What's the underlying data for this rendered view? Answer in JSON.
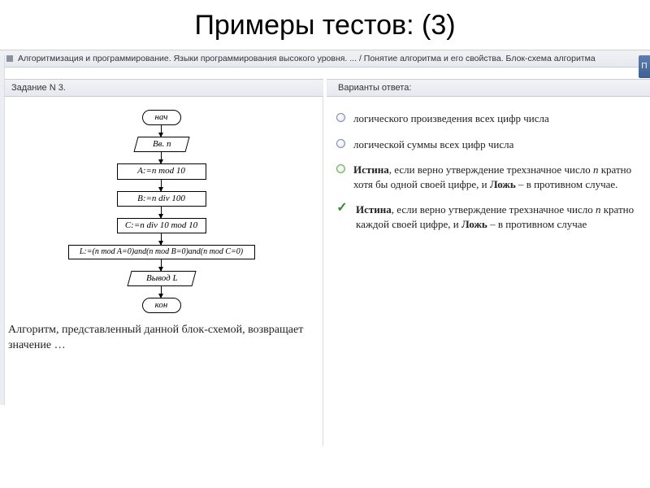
{
  "title": "Примеры тестов: (3)",
  "breadcrumb": "Алгоритмизация и программирование. Языки программирования высокого уровня. ... / Понятие алгоритма и его свойства. Блок-схема алгоритма",
  "right_tab": "П",
  "left_header": "Задание N 3.",
  "right_header": "Варианты ответа:",
  "flowchart": {
    "start": "нач",
    "input": "Вв. n",
    "p1": "A:=n mod 10",
    "p2": "B:=n div 100",
    "p3": "C:=n div 10 mod 10",
    "p4": "L:=(n mod A=0)and(n mod B=0)and(n mod C=0)",
    "output": "Вывод L",
    "end": "кон"
  },
  "caption": "Алгоритм, представленный данной блок-схемой, возвращает значение …",
  "options": [
    {
      "kind": "radio",
      "text": "логического произведения всех цифр числа"
    },
    {
      "kind": "radio",
      "text": "логической суммы всех цифр числа"
    },
    {
      "kind": "radio-hint",
      "html": "<b>Истина</b>, если верно утверждение трехзначное число <i>n</i> кратно хотя бы одной своей цифре, и <b>Ложь</b> – в противном случае."
    },
    {
      "kind": "checked",
      "html": "<b>Истина</b>, если верно утверждение трехзначное число <i>n</i> кратно каждой своей цифре, и <b>Ложь</b> – в противном случае"
    }
  ]
}
